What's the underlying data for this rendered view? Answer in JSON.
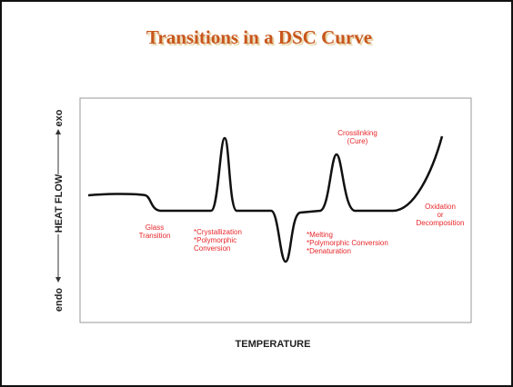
{
  "title": "Transitions in a DSC Curve",
  "axes": {
    "y_top": "exo",
    "y_middle": "HEAT FLOW",
    "y_bottom": "endo",
    "x": "TEMPERATURE"
  },
  "annotations": [
    {
      "lines": [
        "Glass",
        "Transition"
      ]
    },
    {
      "lines": [
        "*Crystallization",
        "*Polymorphic",
        "Conversion"
      ]
    },
    {
      "lines": [
        "Crosslinking",
        "(Cure)"
      ]
    },
    {
      "lines": [
        "*Melting",
        "*Polymorphic Conversion",
        "*Denaturation"
      ]
    },
    {
      "lines": [
        "Oxidation",
        "or",
        "Decomposition"
      ]
    }
  ]
}
